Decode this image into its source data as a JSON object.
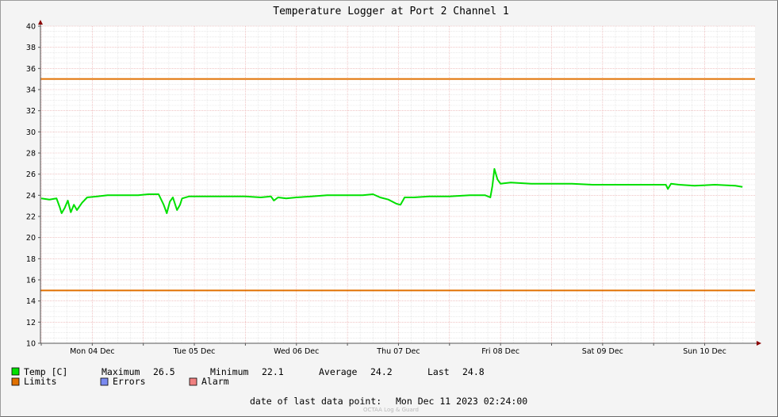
{
  "chart_data": {
    "type": "line",
    "title": "Temperature Logger at Port 2 Channel 1",
    "ylim": [
      10,
      40
    ],
    "y_ticks": [
      "10",
      "12",
      "14",
      "16",
      "18",
      "20",
      "22",
      "24",
      "26",
      "28",
      "30",
      "32",
      "34",
      "36",
      "38",
      "40"
    ],
    "x_tick_labels": [
      "Mon 04 Dec",
      "Tue 05 Dec",
      "Wed 06 Dec",
      "Thu 07 Dec",
      "Fri 08 Dec",
      "Sat 09 Dec",
      "Sun 10 Dec"
    ],
    "grid": true,
    "series": [
      {
        "name": "Temp [C]",
        "color": "#00e000",
        "points": [
          [
            0.0,
            23.7
          ],
          [
            0.08,
            23.6
          ],
          [
            0.15,
            23.7
          ],
          [
            0.18,
            22.9
          ],
          [
            0.2,
            22.3
          ],
          [
            0.23,
            22.8
          ],
          [
            0.26,
            23.5
          ],
          [
            0.29,
            22.4
          ],
          [
            0.32,
            23.1
          ],
          [
            0.35,
            22.6
          ],
          [
            0.4,
            23.3
          ],
          [
            0.45,
            23.8
          ],
          [
            0.55,
            23.9
          ],
          [
            0.65,
            24.0
          ],
          [
            0.75,
            24.0
          ],
          [
            0.85,
            24.0
          ],
          [
            0.95,
            24.0
          ],
          [
            1.05,
            24.1
          ],
          [
            1.15,
            24.1
          ],
          [
            1.2,
            23.1
          ],
          [
            1.23,
            22.3
          ],
          [
            1.26,
            23.4
          ],
          [
            1.29,
            23.8
          ],
          [
            1.33,
            22.6
          ],
          [
            1.36,
            23.1
          ],
          [
            1.38,
            23.7
          ],
          [
            1.45,
            23.9
          ],
          [
            1.6,
            23.9
          ],
          [
            1.8,
            23.9
          ],
          [
            2.0,
            23.9
          ],
          [
            2.15,
            23.8
          ],
          [
            2.25,
            23.9
          ],
          [
            2.28,
            23.5
          ],
          [
            2.32,
            23.8
          ],
          [
            2.4,
            23.7
          ],
          [
            2.5,
            23.8
          ],
          [
            2.65,
            23.9
          ],
          [
            2.8,
            24.0
          ],
          [
            3.0,
            24.0
          ],
          [
            3.15,
            24.0
          ],
          [
            3.25,
            24.1
          ],
          [
            3.32,
            23.8
          ],
          [
            3.4,
            23.6
          ],
          [
            3.48,
            23.2
          ],
          [
            3.52,
            23.1
          ],
          [
            3.56,
            23.8
          ],
          [
            3.65,
            23.8
          ],
          [
            3.8,
            23.9
          ],
          [
            4.0,
            23.9
          ],
          [
            4.2,
            24.0
          ],
          [
            4.35,
            24.0
          ],
          [
            4.4,
            23.8
          ],
          [
            4.42,
            24.9
          ],
          [
            4.44,
            26.5
          ],
          [
            4.47,
            25.5
          ],
          [
            4.5,
            25.1
          ],
          [
            4.6,
            25.2
          ],
          [
            4.8,
            25.1
          ],
          [
            5.0,
            25.1
          ],
          [
            5.2,
            25.1
          ],
          [
            5.4,
            25.0
          ],
          [
            5.6,
            25.0
          ],
          [
            5.8,
            25.0
          ],
          [
            6.0,
            25.0
          ],
          [
            6.12,
            25.0
          ],
          [
            6.14,
            24.6
          ],
          [
            6.17,
            25.1
          ],
          [
            6.25,
            25.0
          ],
          [
            6.4,
            24.9
          ],
          [
            6.6,
            25.0
          ],
          [
            6.8,
            24.9
          ],
          [
            6.87,
            24.8
          ]
        ]
      }
    ],
    "limits": {
      "name": "Limits",
      "color": "#e07000",
      "values": [
        35,
        15
      ]
    }
  },
  "legend": {
    "temp_label": "Temp [C]",
    "temp_color": "#00e000",
    "max_label": "Maximum",
    "max_value": "26.5",
    "min_label": "Minimum",
    "min_value": "22.1",
    "avg_label": "Average",
    "avg_value": "24.2",
    "last_label": "Last",
    "last_value": "24.8",
    "limits_label": "Limits",
    "limits_color": "#e07000",
    "errors_label": "Errors",
    "errors_color": "#7a8af0",
    "alarm_label": "Alarm",
    "alarm_color": "#f08080"
  },
  "footer": {
    "last_point_label": "date of last data point:",
    "last_point_value": "Mon Dec 11 2023 02:24:00",
    "credit": "OCTAA Log & Guard"
  }
}
